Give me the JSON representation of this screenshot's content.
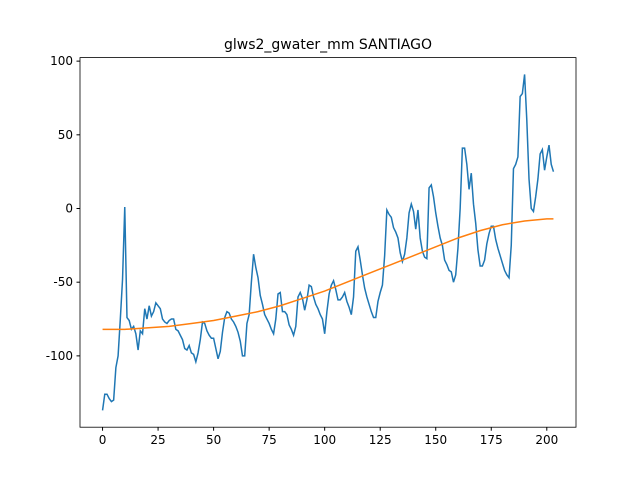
{
  "chart_data": {
    "type": "line",
    "title": "glws2_gwater_mm SANTIAGO",
    "series": [
      {
        "color": "#1f77b4",
        "x": [
          0,
          1,
          2,
          3,
          4,
          5,
          6,
          7,
          8,
          9,
          10,
          11,
          12,
          13,
          14,
          15,
          16,
          17,
          18,
          19,
          20,
          21,
          22,
          23,
          24,
          25,
          26,
          27,
          28,
          29,
          30,
          31,
          32,
          33,
          34,
          35,
          36,
          37,
          38,
          39,
          40,
          41,
          42,
          43,
          44,
          45,
          46,
          47,
          48,
          49,
          50,
          51,
          52,
          53,
          54,
          55,
          56,
          57,
          58,
          59,
          60,
          61,
          62,
          63,
          64,
          65,
          66,
          67,
          68,
          69,
          70,
          71,
          72,
          73,
          74,
          75,
          76,
          77,
          78,
          79,
          80,
          81,
          82,
          83,
          84,
          85,
          86,
          87,
          88,
          89,
          90,
          91,
          92,
          93,
          94,
          95,
          96,
          97,
          98,
          99,
          100,
          101,
          102,
          103,
          104,
          105,
          106,
          107,
          108,
          109,
          110,
          111,
          112,
          113,
          114,
          115,
          116,
          117,
          118,
          119,
          120,
          121,
          122,
          123,
          124,
          125,
          126,
          127,
          128,
          129,
          130,
          131,
          132,
          133,
          134,
          135,
          136,
          137,
          138,
          139,
          140,
          141,
          142,
          143,
          144,
          145,
          146,
          147,
          148,
          149,
          150,
          151,
          152,
          153,
          154,
          155,
          156,
          157,
          158,
          159,
          160,
          161,
          162,
          163,
          164,
          165,
          166,
          167,
          168,
          169,
          170,
          171,
          172,
          173,
          174,
          175,
          176,
          177,
          178,
          179,
          180,
          181,
          182,
          183,
          184,
          185,
          186,
          187,
          188,
          189,
          190,
          191,
          192,
          193,
          194,
          195,
          196,
          197,
          198,
          199,
          200,
          201,
          202,
          203
        ],
        "values": [
          -137,
          -126,
          -126,
          -129,
          -131,
          -130,
          -108,
          -100,
          -75,
          -48,
          1,
          -74,
          -76,
          -82,
          -80,
          -85,
          -96,
          -83,
          -85,
          -68,
          -75,
          -66,
          -73,
          -70,
          -64,
          -66,
          -68,
          -75,
          -77,
          -78,
          -76,
          -75,
          -75,
          -82,
          -83,
          -86,
          -89,
          -95,
          -96,
          -93,
          -98,
          -99,
          -104,
          -98,
          -89,
          -77,
          -78,
          -83,
          -86,
          -88,
          -88,
          -95,
          -102,
          -97,
          -84,
          -74,
          -70,
          -71,
          -75,
          -77,
          -80,
          -84,
          -90,
          -100,
          -100,
          -78,
          -72,
          -50,
          -31,
          -40,
          -47,
          -59,
          -65,
          -72,
          -75,
          -78,
          -82,
          -85,
          -75,
          -58,
          -57,
          -70,
          -70,
          -72,
          -79,
          -82,
          -86,
          -80,
          -60,
          -57,
          -61,
          -69,
          -62,
          -52,
          -53,
          -60,
          -65,
          -68,
          -72,
          -75,
          -85,
          -70,
          -58,
          -52,
          -49,
          -55,
          -62,
          -62,
          -60,
          -57,
          -63,
          -67,
          -72,
          -60,
          -29,
          -26,
          -35,
          -45,
          -54,
          -60,
          -65,
          -70,
          -74,
          -74,
          -63,
          -57,
          -52,
          -32,
          -1,
          -4,
          -6,
          -13,
          -16,
          -20,
          -30,
          -36,
          -31,
          -20,
          -3,
          3,
          -2,
          -14,
          -1,
          -20,
          -29,
          -33,
          -34,
          14,
          16,
          8,
          -3,
          -12,
          -20,
          -25,
          -35,
          -38,
          -42,
          -43,
          -50,
          -45,
          -27,
          0,
          41,
          41,
          30,
          13,
          24,
          3,
          -10,
          -28,
          -39,
          -39,
          -35,
          -24,
          -17,
          -12,
          -12,
          -21,
          -27,
          -32,
          -37,
          -42,
          -45,
          -47,
          -25,
          27,
          30,
          35,
          76,
          78,
          91,
          60,
          20,
          0,
          -2,
          8,
          20,
          37,
          40,
          26,
          35,
          43,
          30,
          25
        ]
      },
      {
        "color": "#ff7f0e",
        "x": [
          0,
          10,
          20,
          30,
          40,
          50,
          60,
          70,
          80,
          90,
          100,
          110,
          120,
          130,
          140,
          150,
          160,
          170,
          180,
          190,
          200,
          203
        ],
        "values": [
          -82,
          -82,
          -81,
          -80,
          -78,
          -76,
          -73,
          -70,
          -66,
          -61,
          -56,
          -50,
          -44,
          -38,
          -32,
          -26,
          -20,
          -15,
          -11,
          -8.5,
          -7,
          -7
        ]
      }
    ],
    "xlim": [
      -10.15,
      213.15
    ],
    "xticks": [
      0,
      25,
      50,
      75,
      100,
      125,
      150,
      175,
      200
    ],
    "ylim": [
      -148.4,
      102.4
    ],
    "yticks": [
      -100,
      -50,
      0,
      50,
      100
    ]
  }
}
